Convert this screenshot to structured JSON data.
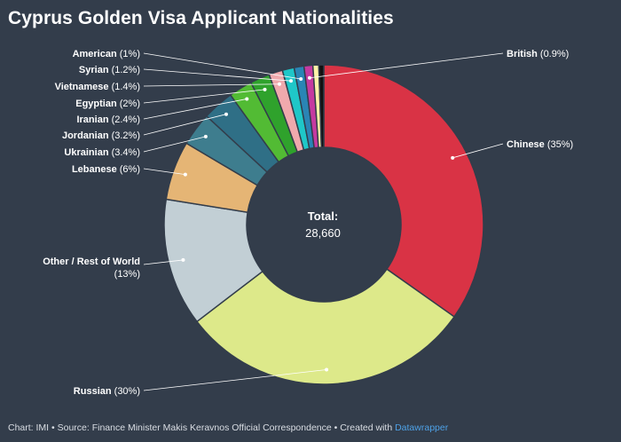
{
  "chart_data": {
    "type": "pie",
    "title": "Cyprus Golden Visa Applicant Nationalities",
    "center_label": "Total:",
    "center_value": "28,660",
    "slices": [
      {
        "label": "Chinese",
        "value": 35,
        "display": "(35%)",
        "color": "#d93345"
      },
      {
        "label": "Russian",
        "value": 30,
        "display": "(30%)",
        "color": "#dde98a"
      },
      {
        "label": "Other / Rest of World",
        "value": 13,
        "display": "(13%)",
        "color": "#c2cfd5"
      },
      {
        "label": "Lebanese",
        "value": 6,
        "display": "(6%)",
        "color": "#e5b575"
      },
      {
        "label": "Ukrainian",
        "value": 3.4,
        "display": "(3.4%)",
        "color": "#3e7d8e"
      },
      {
        "label": "Jordanian",
        "value": 3.2,
        "display": "(3.2%)",
        "color": "#2f6f86"
      },
      {
        "label": "Iranian",
        "value": 2.4,
        "display": "(2.4%)",
        "color": "#52bb34"
      },
      {
        "label": "Egyptian",
        "value": 2,
        "display": "(2%)",
        "color": "#2fa22c"
      },
      {
        "label": "Vietnamese",
        "value": 1.4,
        "display": "(1.4%)",
        "color": "#f0a9ad"
      },
      {
        "label": "Syrian",
        "value": 1.2,
        "display": "(1.2%)",
        "color": "#1fc7c8"
      },
      {
        "label": "American",
        "value": 1,
        "display": "(1%)",
        "color": "#2a85b5"
      },
      {
        "label": "British",
        "value": 0.9,
        "display": "(0.9%)",
        "color": "#c53aa0"
      }
    ],
    "extra_slices": [
      {
        "value": 0.6,
        "color": "#fff3a8"
      },
      {
        "value": 0.5,
        "color": "#111111"
      }
    ]
  },
  "footer": {
    "text": "Chart: IMI • Source: Finance Minister Makis Keravnos Official Correspondence • Created with ",
    "link": "Datawrapper"
  }
}
